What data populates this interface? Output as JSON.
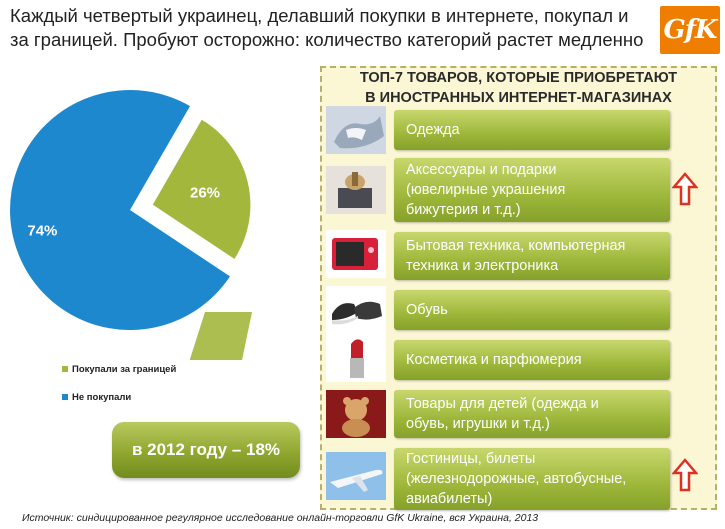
{
  "headline": {
    "line1": "Каждый четвертый украинец, делавший покупки в интернете, покупал и",
    "line2": "за границей. Пробуют осторожно: количество категорий растет медленно"
  },
  "logo_text": "GfK",
  "colors": {
    "blue": "#1e88cf",
    "green": "#a4b73d",
    "green_dark": "#7f982a",
    "panel_bg": "#fbf6d3",
    "arrow_red": "#e03020"
  },
  "chart_data": {
    "type": "pie",
    "title": "",
    "slices": [
      {
        "label": "Покупали за границей",
        "value": 26,
        "display": "26%",
        "color": "#a4b73d",
        "exploded": true
      },
      {
        "label": "Не покупали",
        "value": 74,
        "display": "74%",
        "color": "#1e88cf",
        "exploded": false
      }
    ],
    "legend_position": "bottom-left"
  },
  "legend": {
    "item1": "Покупали за границей",
    "item2": "Не покупали"
  },
  "callout": "в 2012 году – 18%",
  "panel": {
    "title_line1": "ТОП-7 ТОВАРОВ, КОТОРЫЕ ПРИОБРЕТАЮТ",
    "title_line2": "В ИНОСТРАННЫХ ИНТЕРНЕТ-МАГАЗИНАХ",
    "items": [
      {
        "lines": [
          "Одежда"
        ],
        "icon": "clothes-icon",
        "rising": false
      },
      {
        "lines": [
          "Аксессуары и подарки",
          "(ювелирные украшения",
          "бижутерия и т.д.)"
        ],
        "icon": "gift-icon",
        "rising": true
      },
      {
        "lines": [
          "Бытовая техника, компьютерная",
          "техника и электроника"
        ],
        "icon": "camera-icon",
        "rising": false
      },
      {
        "lines": [
          "Обувь"
        ],
        "icon": "shoes-icon",
        "rising": false
      },
      {
        "lines": [
          "Косметика и парфюмерия"
        ],
        "icon": "lipstick-icon",
        "rising": false
      },
      {
        "lines": [
          "Товары для детей (одежда и",
          "обувь, игрушки и т.д.)"
        ],
        "icon": "teddy-bear-icon",
        "rising": false
      },
      {
        "lines": [
          "Гостиницы, билеты",
          "(железнодорожные, автобусные,",
          "авиабилеты)"
        ],
        "icon": "airplane-icon",
        "rising": true
      }
    ]
  },
  "source": "Источник: синдицированное регулярное исследование онлайн-торговли GfK Ukraine, вся Украина, 2013"
}
